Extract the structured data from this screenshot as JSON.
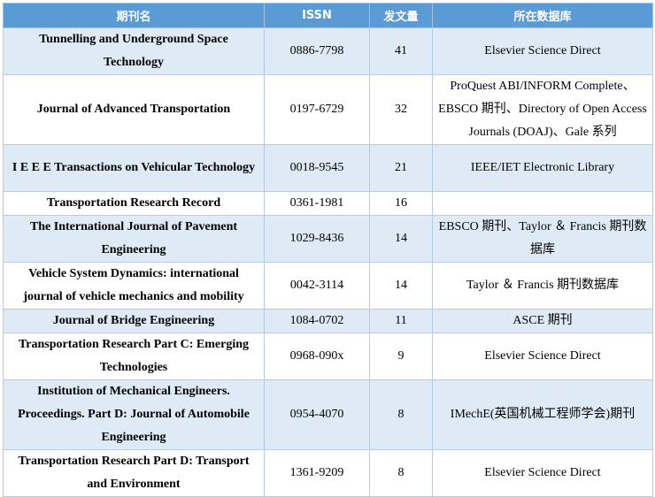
{
  "table": {
    "headers": [
      "期刊名",
      "ISSN",
      "发文量",
      "所在数据库"
    ],
    "rows": [
      {
        "name": "Tunnelling and Underground Space Technology",
        "issn": "0886-7798",
        "count": "41",
        "db": "Elsevier Science Direct"
      },
      {
        "name": "Journal of Advanced Transportation",
        "issn": "0197-6729",
        "count": "32",
        "db": "ProQuest ABI/INFORM Complete、EBSCO 期刊、Directory of Open Access Journals (DOAJ)、Gale 系列"
      },
      {
        "name": "I E E E Transactions on Vehicular Technology",
        "issn": "0018-9545",
        "count": "21",
        "db": "IEEE/IET Electronic Library"
      },
      {
        "name": "Transportation Research Record",
        "issn": "0361-1981",
        "count": "16",
        "db": ""
      },
      {
        "name": "The International Journal of Pavement Engineering",
        "issn": "1029-8436",
        "count": "14",
        "db": "EBSCO 期刊、Taylor ＆ Francis 期刊数据库"
      },
      {
        "name": "Vehicle System Dynamics: international journal of vehicle mechanics and mobility",
        "issn": "0042-3114",
        "count": "14",
        "db": "Taylor ＆ Francis 期刊数据库"
      },
      {
        "name": "Journal of Bridge Engineering",
        "issn": "1084-0702",
        "count": "11",
        "db": "ASCE 期刊"
      },
      {
        "name": "Transportation Research Part C: Emerging Technologies",
        "issn": "0968-090x",
        "count": "9",
        "db": "Elsevier Science Direct"
      },
      {
        "name": "Institution of Mechanical Engineers. Proceedings. Part D: Journal of Automobile Engineering",
        "issn": "0954-4070",
        "count": "8",
        "db": "IMechE(英国机械工程师学会)期刊"
      },
      {
        "name": "Transportation Research Part D: Transport and Environment",
        "issn": "1361-9209",
        "count": "8",
        "db": "Elsevier Science Direct"
      }
    ]
  }
}
